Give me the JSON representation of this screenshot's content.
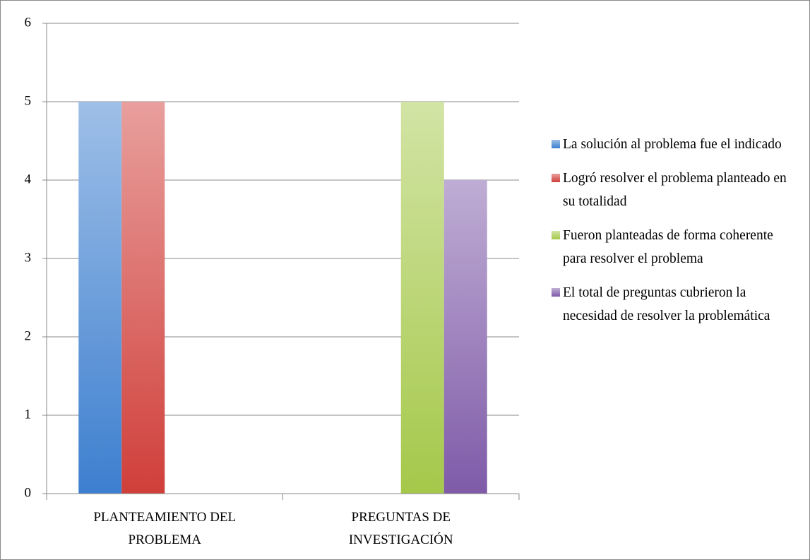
{
  "chart_data": {
    "type": "bar",
    "categories": [
      "PLANTEAMIENTO DEL PROBLEMA",
      "PREGUNTAS DE INVESTIGACIÓN"
    ],
    "series": [
      {
        "name": "La solución al problema fue el indicado",
        "color": "#3d7fcf",
        "values": [
          5,
          null
        ]
      },
      {
        "name": "Logró resolver el problema planteado en su totalidad",
        "color": "#d03f3a",
        "values": [
          5,
          null
        ]
      },
      {
        "name": "Fueron planteadas de forma coherente para resolver el problema",
        "color": "#a5c84a",
        "values": [
          null,
          5
        ]
      },
      {
        "name": "El total de preguntas cubrieron la necesidad de resolver la problemática",
        "color": "#7f5ba8",
        "values": [
          null,
          4
        ]
      }
    ],
    "ylim": [
      0,
      6
    ],
    "yticks": [
      0,
      1,
      2,
      3,
      4,
      5,
      6
    ],
    "grid": true,
    "legend": "right"
  }
}
